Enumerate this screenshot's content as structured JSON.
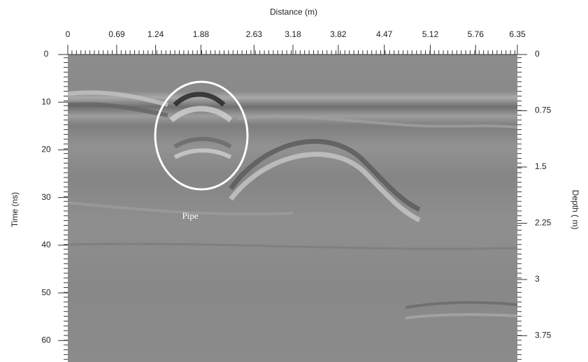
{
  "chart_data": {
    "type": "radargram",
    "xlabel": "Distance (m)",
    "ylabel": "Time (ns)",
    "y2label": "Depth ( m)",
    "xlim": [
      0,
      6.35
    ],
    "xticks": [
      0,
      0.69,
      1.24,
      1.88,
      2.63,
      3.18,
      3.82,
      4.47,
      5.12,
      5.76,
      6.35
    ],
    "ylim": [
      0,
      64.5
    ],
    "yticks": [
      0,
      10,
      20,
      30,
      40,
      50,
      60
    ],
    "y2lim": [
      0,
      4.1
    ],
    "y2ticks": [
      0,
      0.75,
      1.5,
      2.25,
      3,
      3.75
    ],
    "annotation": "Pipe"
  }
}
